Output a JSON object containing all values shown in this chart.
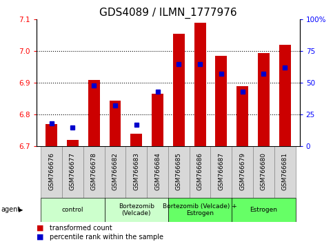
{
  "title": "GDS4089 / ILMN_1777976",
  "samples": [
    "GSM766676",
    "GSM766677",
    "GSM766678",
    "GSM766682",
    "GSM766683",
    "GSM766684",
    "GSM766685",
    "GSM766686",
    "GSM766687",
    "GSM766679",
    "GSM766680",
    "GSM766681"
  ],
  "red_values": [
    6.77,
    6.72,
    6.91,
    6.845,
    6.74,
    6.865,
    7.055,
    7.09,
    6.985,
    6.89,
    6.995,
    7.02
  ],
  "blue_values": [
    18,
    15,
    48,
    32,
    17,
    43,
    65,
    65,
    57,
    43,
    57,
    62
  ],
  "ylim_left": [
    6.7,
    7.1
  ],
  "ylim_right": [
    0,
    100
  ],
  "yticks_left": [
    6.7,
    6.8,
    6.9,
    7.0,
    7.1
  ],
  "yticks_right": [
    0,
    25,
    50,
    75,
    100
  ],
  "ytick_labels_right": [
    "0",
    "25",
    "50",
    "75",
    "100%"
  ],
  "gridlines": [
    6.8,
    6.9,
    7.0
  ],
  "groups": [
    {
      "label": "control",
      "start": 0,
      "end": 3,
      "color": "#ccffcc"
    },
    {
      "label": "Bortezomib\n(Velcade)",
      "start": 3,
      "end": 6,
      "color": "#ccffcc"
    },
    {
      "label": "Bortezomib (Velcade) +\nEstrogen",
      "start": 6,
      "end": 9,
      "color": "#66ff66"
    },
    {
      "label": "Estrogen",
      "start": 9,
      "end": 12,
      "color": "#66ff66"
    }
  ],
  "legend_red": "transformed count",
  "legend_blue": "percentile rank within the sample",
  "agent_label": "agent",
  "bar_color_red": "#cc0000",
  "bar_color_blue": "#0000cc",
  "base_value": 6.7,
  "title_fontsize": 11,
  "tick_fontsize": 7.5,
  "sample_fontsize": 6.5,
  "group_fontsize": 6.5,
  "bar_width": 0.55,
  "sample_box_color": "#d8d8d8",
  "sample_box_edge": "#888888"
}
